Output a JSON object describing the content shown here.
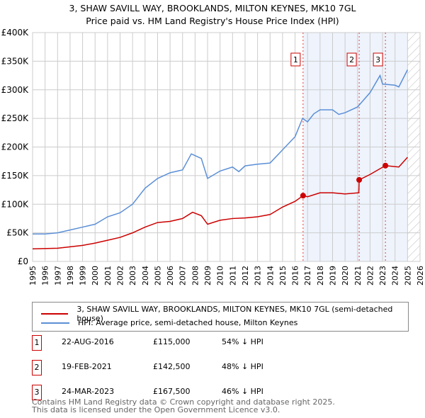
{
  "title": "3, SHAW SAVILL WAY, BROOKLANDS, MILTON KEYNES, MK10 7GL",
  "subtitle": "Price paid vs. HM Land Registry's House Price Index (HPI)",
  "chart_data": {
    "type": "line",
    "title": "3, SHAW SAVILL WAY, BROOKLANDS, MILTON KEYNES, MK10 7GL",
    "subtitle": "Price paid vs. HM Land Registry's House Price Index (HPI)",
    "xlim": [
      1995,
      2026
    ],
    "ylim": [
      0,
      400000
    ],
    "x_ticks": [
      "1995",
      "1996",
      "1997",
      "1998",
      "1999",
      "2000",
      "2001",
      "2002",
      "2003",
      "2004",
      "2005",
      "2006",
      "2007",
      "2008",
      "2009",
      "2010",
      "2011",
      "2012",
      "2013",
      "2014",
      "2015",
      "2016",
      "2017",
      "2018",
      "2019",
      "2020",
      "2021",
      "2022",
      "2023",
      "2024",
      "2025",
      "2026"
    ],
    "y_ticks": [
      {
        "v": 0,
        "l": "£0"
      },
      {
        "v": 50000,
        "l": "£50K"
      },
      {
        "v": 100000,
        "l": "£100K"
      },
      {
        "v": 150000,
        "l": "£150K"
      },
      {
        "v": 200000,
        "l": "£200K"
      },
      {
        "v": 250000,
        "l": "£250K"
      },
      {
        "v": 300000,
        "l": "£300K"
      },
      {
        "v": 350000,
        "l": "£350K"
      },
      {
        "v": 400000,
        "l": "£400K"
      }
    ],
    "series": [
      {
        "name": "3, SHAW SAVILL WAY, BROOKLANDS, MILTON KEYNES, MK10 7GL (semi-detached house)",
        "color": "#cc0000",
        "x": [
          1995,
          1997,
          1999,
          2000,
          2001,
          2002,
          2003,
          2004,
          2005,
          2006,
          2007,
          2007.8,
          2008.5,
          2009,
          2010,
          2011,
          2012,
          2013,
          2014,
          2015,
          2016,
          2016.64,
          2017,
          2018,
          2019,
          2020,
          2021.1,
          2021.13,
          2022,
          2023.23,
          2024.3,
          2025
        ],
        "y": [
          22000,
          23000,
          28000,
          32000,
          37000,
          42000,
          50000,
          60000,
          68000,
          70000,
          75000,
          86000,
          80000,
          65000,
          72000,
          75000,
          76000,
          78000,
          82000,
          95000,
          105000,
          115000,
          113000,
          120000,
          120000,
          118000,
          120000,
          142500,
          152000,
          167500,
          165000,
          182000
        ]
      },
      {
        "name": "HPI: Average price, semi-detached house, Milton Keynes",
        "color": "#5b8fd6",
        "x": [
          1995,
          1996,
          1997,
          1998,
          1999,
          2000,
          2001,
          2002,
          2003,
          2004,
          2005,
          2006,
          2007,
          2007.7,
          2008.5,
          2009,
          2010,
          2011,
          2011.5,
          2012,
          2013,
          2014,
          2015,
          2016,
          2016.6,
          2017,
          2017.5,
          2018,
          2019,
          2019.5,
          2020,
          2021,
          2022,
          2022.8,
          2023,
          2024,
          2024.3,
          2025
        ],
        "y": [
          48000,
          48000,
          50000,
          55000,
          60000,
          65000,
          78000,
          85000,
          100000,
          128000,
          145000,
          155000,
          160000,
          188000,
          180000,
          145000,
          158000,
          165000,
          157000,
          167000,
          170000,
          172000,
          195000,
          218000,
          250000,
          244000,
          258000,
          265000,
          265000,
          257000,
          260000,
          270000,
          295000,
          325000,
          310000,
          308000,
          305000,
          335000
        ]
      }
    ],
    "sales": [
      {
        "label": "1",
        "x": 2016.64,
        "y": 115000
      },
      {
        "label": "2",
        "x": 2021.13,
        "y": 142500
      },
      {
        "label": "3",
        "x": 2023.23,
        "y": 167500
      }
    ],
    "shaded_from": 2016.64,
    "hatched_from": 2025.0
  },
  "legend": [
    "3, SHAW SAVILL WAY, BROOKLANDS, MILTON KEYNES, MK10 7GL (semi-detached house)",
    "HPI: Average price, semi-detached house, Milton Keynes"
  ],
  "sales_table": [
    {
      "n": "1",
      "date": "22-AUG-2016",
      "price": "£115,000",
      "hpi": "54% ↓ HPI"
    },
    {
      "n": "2",
      "date": "19-FEB-2021",
      "price": "£142,500",
      "hpi": "48% ↓ HPI"
    },
    {
      "n": "3",
      "date": "24-MAR-2023",
      "price": "£167,500",
      "hpi": "46% ↓ HPI"
    }
  ],
  "footer": [
    "Contains HM Land Registry data © Crown copyright and database right 2025.",
    "This data is licensed under the Open Government Licence v3.0."
  ]
}
